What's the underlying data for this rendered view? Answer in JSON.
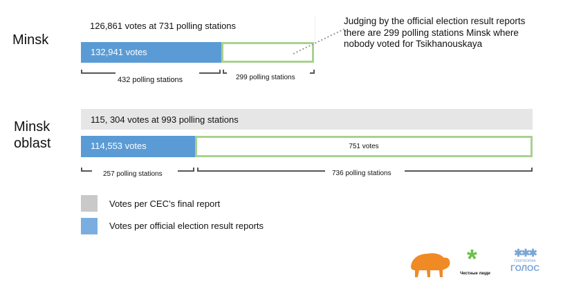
{
  "annotation": "Judging by the official election result reports there are 299 polling stations Minsk where nobody voted for Tsikhanouskaya",
  "regions": [
    {
      "name": "Minsk",
      "cec_label": "126,861 votes at 731 polling stations",
      "official_label": "132,941 votes",
      "zero_label": "",
      "left_stations": "432 polling stations",
      "right_stations": "299 polling stations"
    },
    {
      "name": "Minsk oblast",
      "cec_label": "115, 304 votes at 993 polling stations",
      "official_label": "114,553 votes",
      "zero_label": "751 votes",
      "left_stations": "257 polling stations",
      "right_stations": "736 polling stations"
    }
  ],
  "legend": [
    {
      "label": "Votes per CEC’s final report",
      "color": "#c9c9c9"
    },
    {
      "label": "Votes per official election result reports",
      "color": "#7aaee0"
    }
  ],
  "colors": {
    "official": "#5b9bd5",
    "zero_outline": "#a9d18e",
    "cec": "#e7e6e6"
  },
  "logos": {
    "bison": "bison-logo",
    "honest": "Честные люди",
    "golos_top": "ПЛАТФОРМА",
    "golos_bottom": "ГОЛОС"
  }
}
